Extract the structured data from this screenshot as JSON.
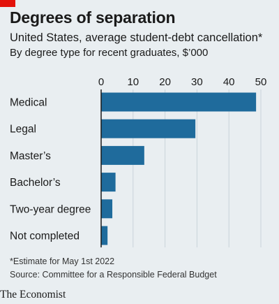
{
  "header": {
    "title": "Degrees of separation",
    "subtitle": "United States, average student-debt cancellation*",
    "description": "By degree type for recent graduates, $’000"
  },
  "footer": {
    "footnote": "*Estimate for May 1st 2022",
    "source": "Source: Committee for a Responsible Federal Budget",
    "brand": "The Economist"
  },
  "colors": {
    "bar": "#1f6b9c",
    "accent": "#e3120b",
    "grid": "#c9d3da",
    "axis": "#1a1a1a",
    "background": "#e9eef1"
  },
  "chart_data": {
    "type": "bar",
    "orientation": "horizontal",
    "categories": [
      "Medical",
      "Legal",
      "Master’s",
      "Bachelor’s",
      "Two-year degree",
      "Not completed"
    ],
    "values": [
      48.5,
      29.5,
      13.5,
      4.5,
      3.5,
      2
    ],
    "xlim": [
      0,
      50
    ],
    "xticks": [
      0,
      10,
      20,
      30,
      40,
      50
    ],
    "grid": true
  }
}
